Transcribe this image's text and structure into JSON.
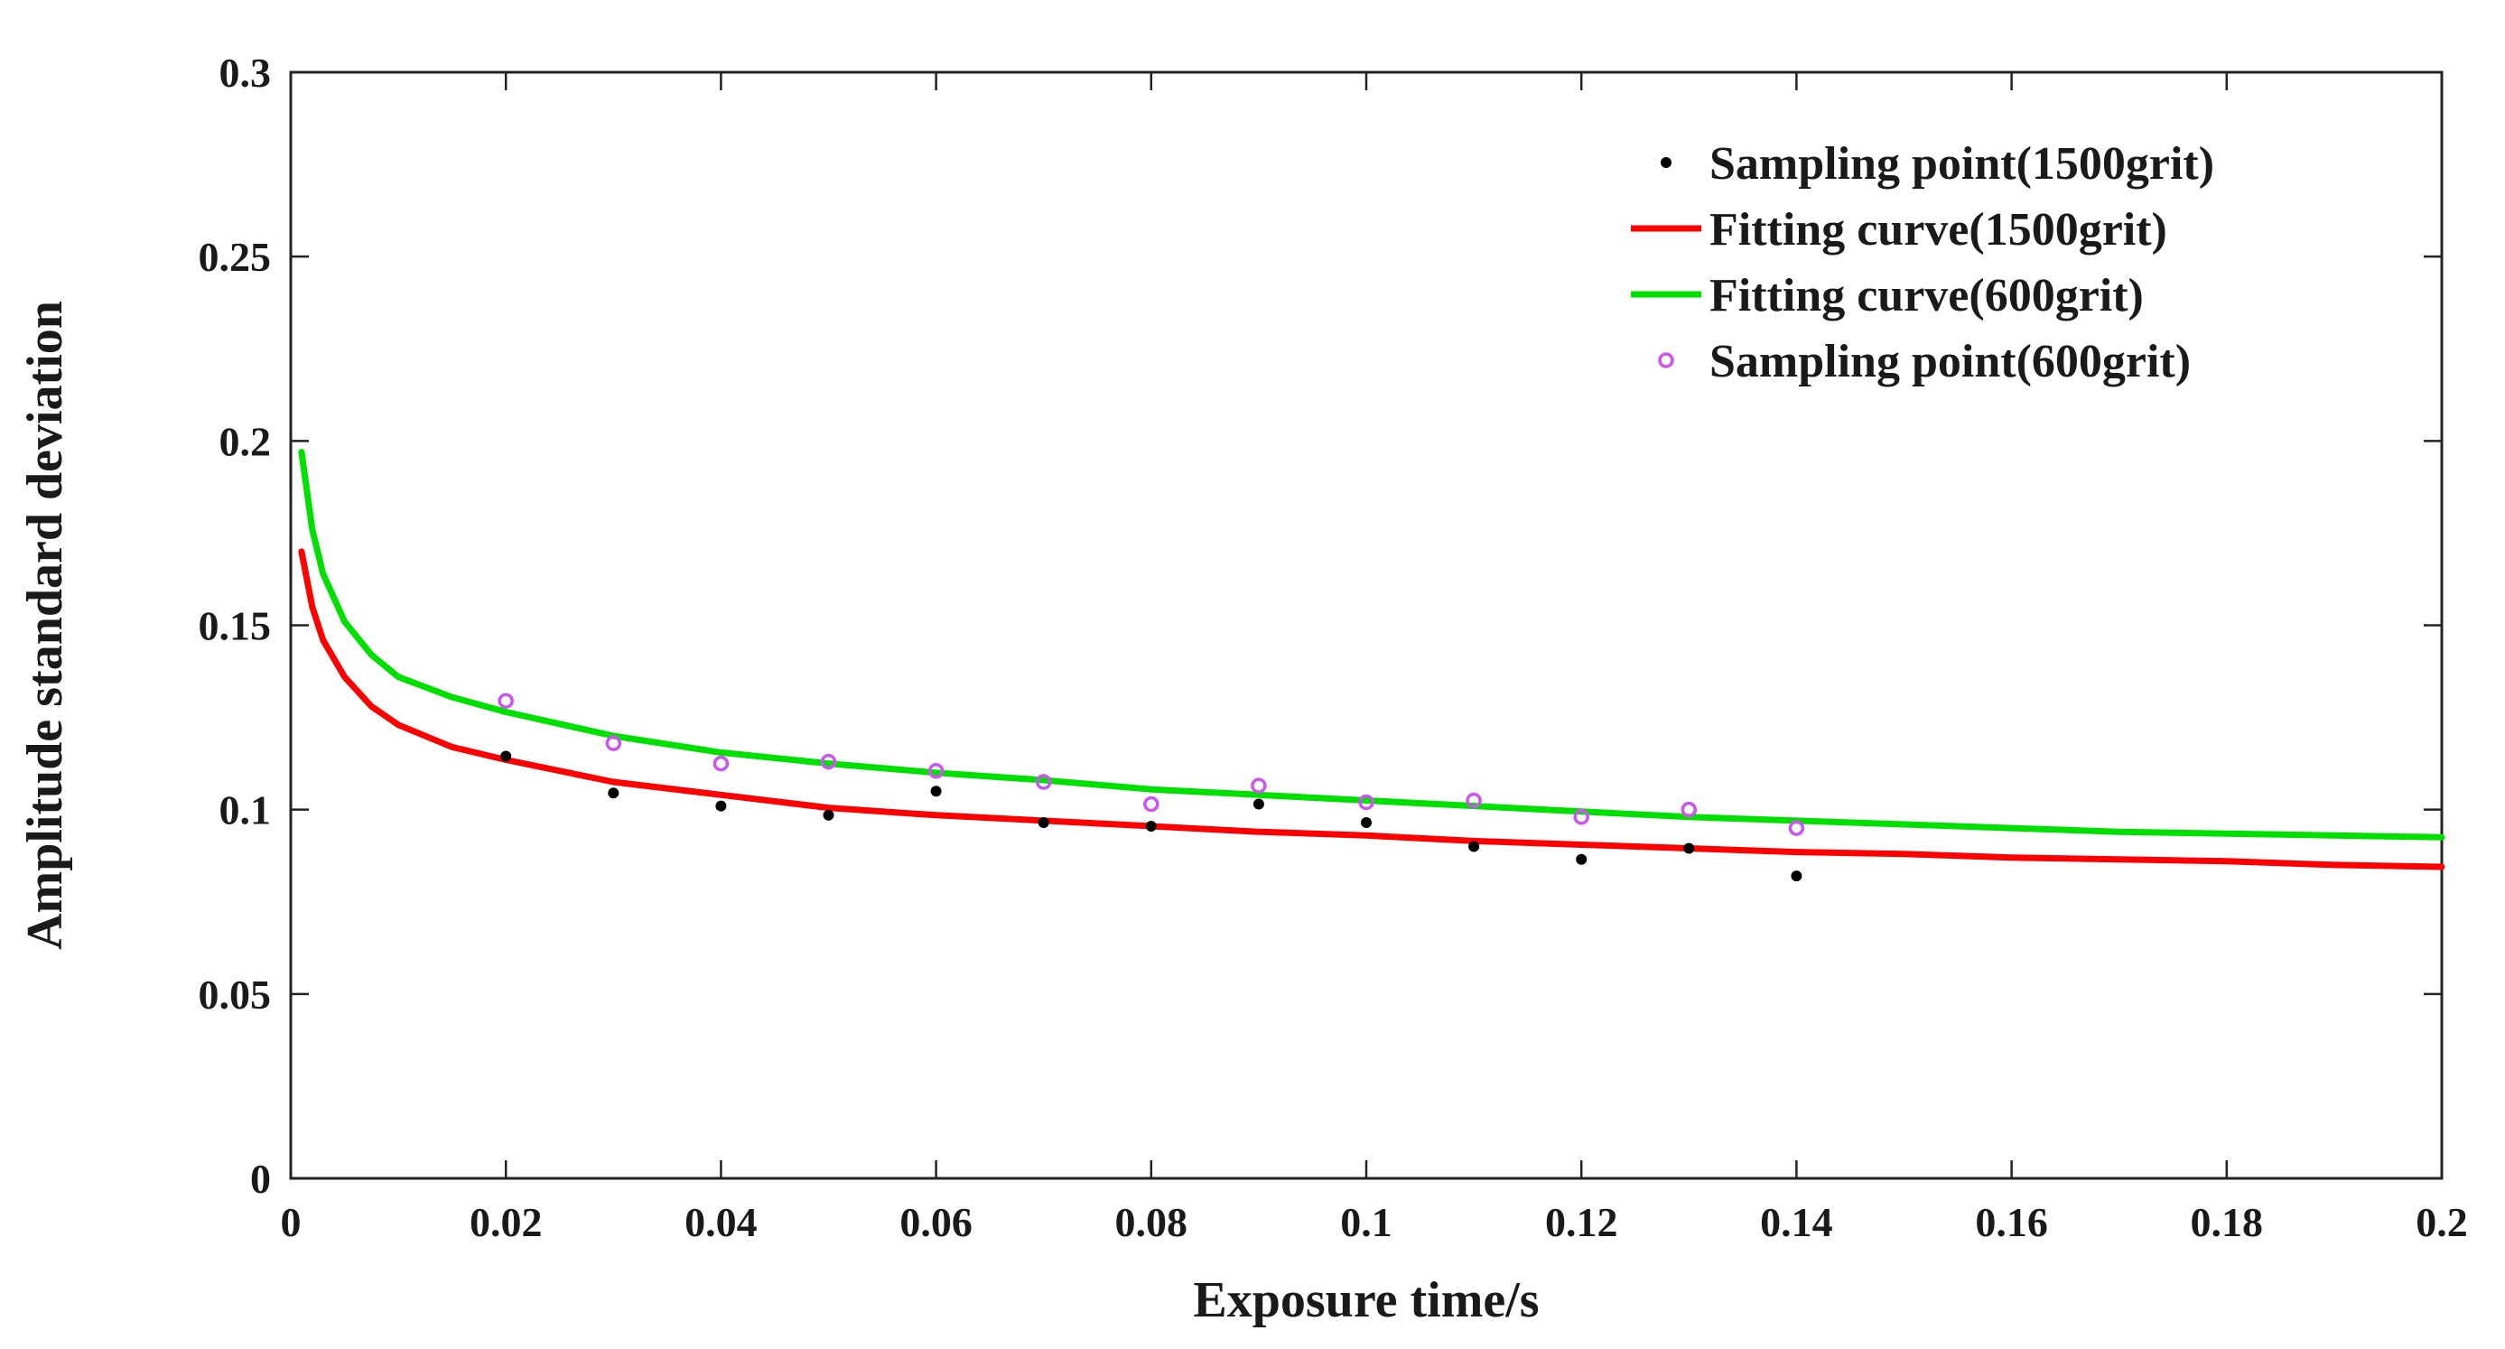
{
  "chart_data": {
    "type": "scatter",
    "title": "",
    "xlabel": "Exposure time/s",
    "ylabel": "Amplitude standard deviation",
    "xlim": [
      0,
      0.2
    ],
    "ylim": [
      0,
      0.3
    ],
    "xticks": [
      0,
      0.02,
      0.04,
      0.06,
      0.08,
      0.1,
      0.12,
      0.14,
      0.16,
      0.18,
      0.2
    ],
    "xtick_labels": [
      "0",
      "0.02",
      "0.04",
      "0.06",
      "0.08",
      "0.1",
      "0.12",
      "0.14",
      "0.16",
      "0.18",
      "0.2"
    ],
    "yticks": [
      0,
      0.05,
      0.1,
      0.15,
      0.2,
      0.25,
      0.3
    ],
    "ytick_labels": [
      "0",
      "0.05",
      "0.1",
      "0.15",
      "0.2",
      "0.25",
      "0.3"
    ],
    "grid": false,
    "legend_position": "top-right",
    "series": [
      {
        "name": "Sampling point(1500grit)",
        "kind": "scatter",
        "marker": "dot",
        "color": "#000000",
        "x": [
          0.02,
          0.03,
          0.04,
          0.05,
          0.06,
          0.07,
          0.08,
          0.09,
          0.1,
          0.11,
          0.12,
          0.13,
          0.14
        ],
        "y": [
          0.1145,
          0.1045,
          0.101,
          0.0985,
          0.105,
          0.0965,
          0.0955,
          0.1015,
          0.0965,
          0.09,
          0.0865,
          0.0895,
          0.082
        ]
      },
      {
        "name": "Fitting curve(1500grit)",
        "kind": "line",
        "color": "#ff0000",
        "x": [
          0.001,
          0.002,
          0.003,
          0.005,
          0.0075,
          0.01,
          0.015,
          0.02,
          0.03,
          0.04,
          0.05,
          0.06,
          0.07,
          0.08,
          0.09,
          0.1,
          0.11,
          0.12,
          0.13,
          0.14,
          0.15,
          0.16,
          0.17,
          0.18,
          0.19,
          0.2
        ],
        "y": [
          0.17,
          0.155,
          0.146,
          0.136,
          0.128,
          0.123,
          0.117,
          0.1135,
          0.1075,
          0.104,
          0.1005,
          0.0985,
          0.097,
          0.0955,
          0.094,
          0.093,
          0.0915,
          0.0905,
          0.0895,
          0.0885,
          0.088,
          0.087,
          0.0865,
          0.086,
          0.085,
          0.0845
        ]
      },
      {
        "name": "Fitting curve(600grit)",
        "kind": "line",
        "color": "#00e000",
        "x": [
          0.001,
          0.002,
          0.003,
          0.005,
          0.0075,
          0.01,
          0.015,
          0.02,
          0.03,
          0.04,
          0.05,
          0.06,
          0.07,
          0.08,
          0.09,
          0.1,
          0.11,
          0.12,
          0.13,
          0.14,
          0.15,
          0.16,
          0.17,
          0.18,
          0.19,
          0.2
        ],
        "y": [
          0.197,
          0.176,
          0.164,
          0.151,
          0.142,
          0.136,
          0.1305,
          0.1265,
          0.12,
          0.1155,
          0.1125,
          0.11,
          0.108,
          0.1055,
          0.104,
          0.1025,
          0.101,
          0.0995,
          0.098,
          0.097,
          0.096,
          0.095,
          0.094,
          0.0935,
          0.093,
          0.0925
        ]
      },
      {
        "name": "Sampling point(600grit)",
        "kind": "scatter",
        "marker": "open-circle",
        "color": "#cc55ee",
        "x": [
          0.02,
          0.03,
          0.04,
          0.05,
          0.06,
          0.07,
          0.08,
          0.09,
          0.1,
          0.11,
          0.12,
          0.13,
          0.14
        ],
        "y": [
          0.1295,
          0.118,
          0.1125,
          0.113,
          0.1105,
          0.1075,
          0.1015,
          0.1065,
          0.102,
          0.1025,
          0.098,
          0.1,
          0.095
        ]
      }
    ]
  }
}
